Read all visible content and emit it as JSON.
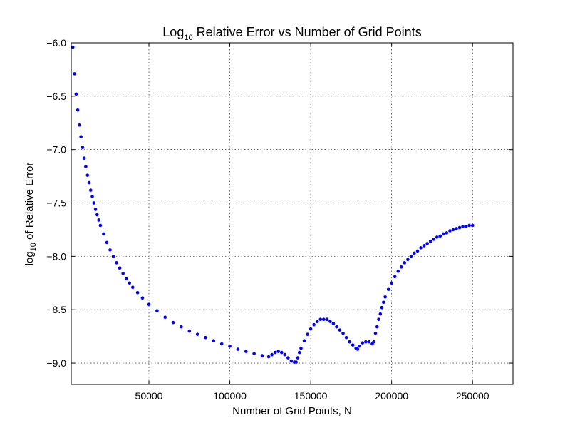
{
  "chart_data": {
    "type": "scatter",
    "title_main": "Log",
    "title_sub": "10",
    "title_rest": " Relative Error vs Number of Grid Points",
    "xlabel": "Number of Grid Points, N",
    "ylabel_main": "log",
    "ylabel_sub": "10",
    "ylabel_rest": " of Relative Error",
    "xlim": [
      2000,
      275000
    ],
    "ylim": [
      -9.2,
      -6.0
    ],
    "xticks": [
      {
        "value": 50000,
        "label": "50000"
      },
      {
        "value": 100000,
        "label": "100000"
      },
      {
        "value": 150000,
        "label": "150000"
      },
      {
        "value": 200000,
        "label": "200000"
      },
      {
        "value": 250000,
        "label": "250000"
      }
    ],
    "yticks": [
      {
        "value": -6.0,
        "label": "−6.0"
      },
      {
        "value": -6.5,
        "label": "−6.5"
      },
      {
        "value": -7.0,
        "label": "−7.0"
      },
      {
        "value": -7.5,
        "label": "−7.5"
      },
      {
        "value": -8.0,
        "label": "−8.0"
      },
      {
        "value": -8.5,
        "label": "−8.5"
      },
      {
        "value": -9.0,
        "label": "−9.0"
      }
    ],
    "grid": true,
    "marker_color": "#0000ff",
    "series": [
      {
        "x": [
          3000,
          4000,
          5000,
          6000,
          7000,
          8000,
          9000,
          10000,
          11000,
          12000,
          13000,
          14000,
          15000,
          16000,
          17000,
          18000,
          19000,
          20000,
          22000,
          24000,
          26000,
          28000,
          30000,
          32000,
          34000,
          36000,
          38000,
          40000,
          43000,
          46000,
          50000,
          55000,
          60000,
          65000,
          70000,
          75000,
          80000,
          85000,
          90000,
          95000,
          100000,
          105000,
          110000,
          115000,
          120000,
          124000,
          126000,
          128000,
          130000,
          132000,
          134000,
          136000,
          138000,
          140000,
          141000,
          142000,
          143000,
          144000,
          146000,
          148000,
          150000,
          152000,
          154000,
          156000,
          158000,
          160000,
          162000,
          164000,
          166000,
          168000,
          170000,
          172000,
          174000,
          176000,
          178000,
          179000,
          180000,
          182000,
          184000,
          186000,
          188000,
          189000,
          190000,
          191000,
          192000,
          193000,
          194000,
          195000,
          196000,
          198000,
          200000,
          202000,
          204000,
          206000,
          208000,
          210000,
          212000,
          214000,
          216000,
          218000,
          220000,
          222000,
          224000,
          226000,
          228000,
          230000,
          232000,
          234000,
          236000,
          238000,
          240000,
          242000,
          244000,
          246000,
          248000,
          250000
        ],
        "y": [
          -6.04,
          -6.29,
          -6.48,
          -6.63,
          -6.77,
          -6.88,
          -6.98,
          -7.08,
          -7.16,
          -7.24,
          -7.31,
          -7.38,
          -7.44,
          -7.5,
          -7.56,
          -7.61,
          -7.66,
          -7.71,
          -7.79,
          -7.87,
          -7.94,
          -8.0,
          -8.06,
          -8.11,
          -8.16,
          -8.21,
          -8.25,
          -8.29,
          -8.34,
          -8.39,
          -8.45,
          -8.51,
          -8.57,
          -8.62,
          -8.66,
          -8.7,
          -8.73,
          -8.76,
          -8.79,
          -8.82,
          -8.84,
          -8.87,
          -8.89,
          -8.91,
          -8.93,
          -8.94,
          -8.92,
          -8.9,
          -8.89,
          -8.9,
          -8.92,
          -8.95,
          -8.98,
          -8.99,
          -8.99,
          -8.95,
          -8.9,
          -8.86,
          -8.79,
          -8.73,
          -8.68,
          -8.64,
          -8.61,
          -8.59,
          -8.59,
          -8.59,
          -8.61,
          -8.63,
          -8.66,
          -8.69,
          -8.72,
          -8.76,
          -8.8,
          -8.83,
          -8.86,
          -8.87,
          -8.84,
          -8.81,
          -8.8,
          -8.8,
          -8.82,
          -8.8,
          -8.72,
          -8.66,
          -8.59,
          -8.54,
          -8.48,
          -8.43,
          -8.38,
          -8.31,
          -8.25,
          -8.19,
          -8.14,
          -8.1,
          -8.06,
          -8.03,
          -8.0,
          -7.97,
          -7.95,
          -7.92,
          -7.9,
          -7.88,
          -7.86,
          -7.84,
          -7.82,
          -7.81,
          -7.79,
          -7.78,
          -7.76,
          -7.75,
          -7.74,
          -7.73,
          -7.72,
          -7.72,
          -7.71,
          -7.71
        ]
      }
    ]
  }
}
